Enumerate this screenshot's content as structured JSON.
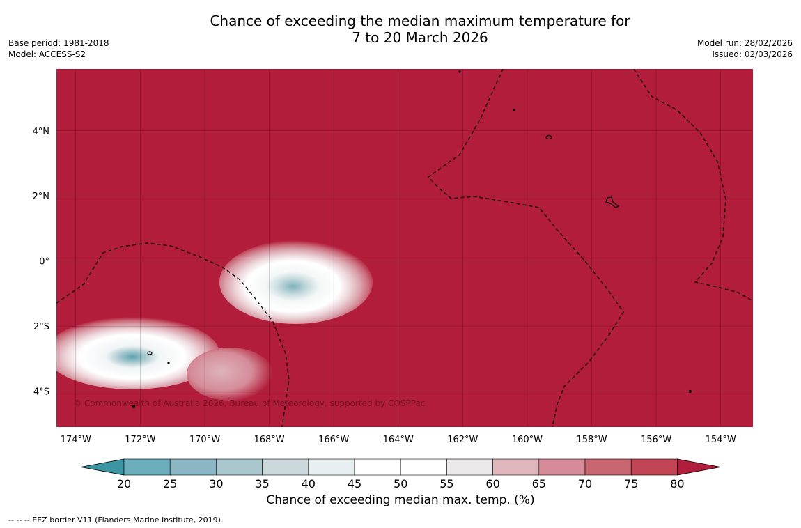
{
  "header": {
    "title_line1": "Chance of exceeding the median maximum temperature for",
    "title_line2": "7 to 20 March 2026",
    "base_period": "Base period: 1981-2018",
    "model": "Model: ACCESS-S2",
    "model_run": "Model run: 28/02/2026",
    "issued": "Issued: 02/03/2026"
  },
  "map": {
    "lon_ticks": [
      "174°W",
      "172°W",
      "170°W",
      "168°W",
      "166°W",
      "164°W",
      "162°W",
      "160°W",
      "158°W",
      "156°W",
      "154°W"
    ],
    "lat_ticks": [
      "4°N",
      "2°N",
      "0°",
      "2°S",
      "4°S"
    ],
    "lon_range_deg_w": [
      174.6,
      153.0
    ],
    "lat_range": [
      5.9,
      -5.1
    ],
    "background_color": "#b21d3b",
    "credit": "© Commonwealth of Australia 2026, Bureau of Meteorology, supported by COSPPac"
  },
  "colorbar": {
    "labels": [
      "20",
      "25",
      "30",
      "35",
      "40",
      "45",
      "50",
      "55",
      "60",
      "65",
      "70",
      "75",
      "80"
    ],
    "colors": [
      "#3b95a3",
      "#6badbb",
      "#8bb6c3",
      "#a9c6cd",
      "#ccd9dc",
      "#e8eff0",
      "#ffffff",
      "#ffffff",
      "#ebe9ea",
      "#e0b6bd",
      "#d58c98",
      "#c86771",
      "#c14555",
      "#b21d3b"
    ],
    "title": "Chance of exceeding median max. temp. (%)"
  },
  "footnote": "--  --  -- EEZ border V11 (Flanders Marine Institute, 2019)."
}
